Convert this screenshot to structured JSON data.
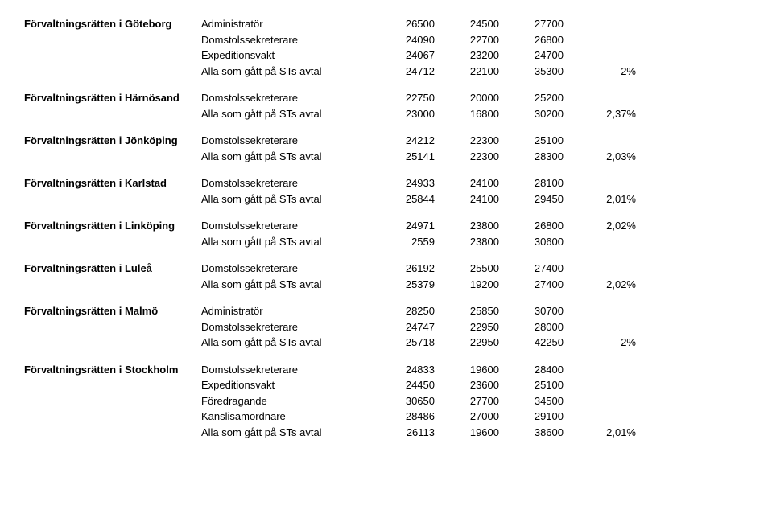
{
  "courts": [
    {
      "name": "Förvaltningsrätten i Göteborg",
      "rows": [
        {
          "role": "Administratör",
          "c1": "26500",
          "c2": "24500",
          "c3": "27700",
          "pct": ""
        },
        {
          "role": "Domstolssekreterare",
          "c1": "24090",
          "c2": "22700",
          "c3": "26800",
          "pct": ""
        },
        {
          "role": "Expeditionsvakt",
          "c1": "24067",
          "c2": "23200",
          "c3": "24700",
          "pct": ""
        },
        {
          "role": "Alla som gått på STs avtal",
          "c1": "24712",
          "c2": "22100",
          "c3": "35300",
          "pct": "2%"
        }
      ]
    },
    {
      "name": "Förvaltningsrätten i Härnösand",
      "rows": [
        {
          "role": "Domstolssekreterare",
          "c1": "22750",
          "c2": "20000",
          "c3": "25200",
          "pct": ""
        },
        {
          "role": "Alla som gått på STs avtal",
          "c1": "23000",
          "c2": "16800",
          "c3": "30200",
          "pct": "2,37%"
        }
      ]
    },
    {
      "name": "Förvaltningsrätten i Jönköping",
      "rows": [
        {
          "role": "Domstolssekreterare",
          "c1": "24212",
          "c2": "22300",
          "c3": "25100",
          "pct": ""
        },
        {
          "role": "Alla som gått på STs avtal",
          "c1": "25141",
          "c2": "22300",
          "c3": "28300",
          "pct": "2,03%"
        }
      ]
    },
    {
      "name": "Förvaltningsrätten i Karlstad",
      "rows": [
        {
          "role": "Domstolssekreterare",
          "c1": "24933",
          "c2": "24100",
          "c3": "28100",
          "pct": ""
        },
        {
          "role": "Alla som gått på STs avtal",
          "c1": "25844",
          "c2": "24100",
          "c3": "29450",
          "pct": "2,01%"
        }
      ]
    },
    {
      "name": "Förvaltningsrätten i Linköping",
      "rows": [
        {
          "role": "Domstolssekreterare",
          "c1": "24971",
          "c2": "23800",
          "c3": "26800",
          "pct": "2,02%"
        },
        {
          "role": "Alla som gått på STs avtal",
          "c1": "2559",
          "c2": "23800",
          "c3": "30600",
          "pct": ""
        }
      ]
    },
    {
      "name": "Förvaltningsrätten i Luleå",
      "rows": [
        {
          "role": "Domstolssekreterare",
          "c1": "26192",
          "c2": "25500",
          "c3": "27400",
          "pct": ""
        },
        {
          "role": "Alla som gått på STs avtal",
          "c1": "25379",
          "c2": "19200",
          "c3": "27400",
          "pct": "2,02%"
        }
      ]
    },
    {
      "name": "Förvaltningsrätten i Malmö",
      "rows": [
        {
          "role": "Administratör",
          "c1": "28250",
          "c2": "25850",
          "c3": "30700",
          "pct": ""
        },
        {
          "role": "Domstolssekreterare",
          "c1": "24747",
          "c2": "22950",
          "c3": "28000",
          "pct": ""
        },
        {
          "role": "Alla som gått på STs avtal",
          "c1": "25718",
          "c2": "22950",
          "c3": "42250",
          "pct": "2%"
        }
      ]
    },
    {
      "name": "Förvaltningsrätten i Stockholm",
      "rows": [
        {
          "role": "Domstolssekreterare",
          "c1": "24833",
          "c2": "19600",
          "c3": "28400",
          "pct": ""
        },
        {
          "role": "Expeditionsvakt",
          "c1": "24450",
          "c2": "23600",
          "c3": "25100",
          "pct": ""
        },
        {
          "role": "Föredragande",
          "c1": "30650",
          "c2": "27700",
          "c3": "34500",
          "pct": ""
        },
        {
          "role": "Kanslisamordnare",
          "c1": "28486",
          "c2": "27000",
          "c3": "29100",
          "pct": ""
        },
        {
          "role": "Alla som gått på STs avtal",
          "c1": "26113",
          "c2": "19600",
          "c3": "38600",
          "pct": "2,01%"
        }
      ]
    }
  ]
}
